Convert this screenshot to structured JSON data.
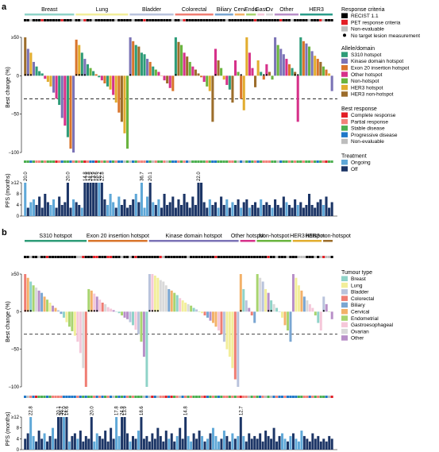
{
  "panels": {
    "a": {
      "label": "a",
      "groups": [
        {
          "name": "Breast",
          "color": "#8fd3c8"
        },
        {
          "name": "Lung",
          "color": "#f2ee9a"
        },
        {
          "name": "Bladder",
          "color": "#b9c3dc"
        },
        {
          "name": "Colorectal",
          "color": "#ef7d73"
        },
        {
          "name": "Biliary",
          "color": "#7aa6d2"
        },
        {
          "name": "Cerv",
          "color": "#f3b169"
        },
        {
          "name": "Endo",
          "color": "#a8d46f"
        },
        {
          "name": "Gast",
          "color": "#f5c7d9"
        },
        {
          "name": "Ov",
          "color": "#d9d9d9"
        },
        {
          "name": "Other",
          "color": "#b88fc8"
        },
        {
          "name": "HER3",
          "color": "#2a9c8a"
        }
      ],
      "bc_ylabel": "Best change (%)",
      "pfs_ylabel": "PFS (months)",
      "yticks_bc": [
        "≥50",
        "0",
        "−50",
        "−100"
      ],
      "yticks_pfs": [
        "≥12",
        "8",
        "4",
        "0"
      ],
      "pfs_labels": [
        "20.0",
        "20.0",
        "14.8",
        "17.8",
        "24.9",
        "13.9",
        "18.6",
        "16.2",
        "22.8",
        "36.7",
        "20.1",
        "22.0"
      ]
    },
    "b": {
      "label": "b",
      "groups": [
        {
          "name": "S310 hotspot",
          "color": "#2e9c78"
        },
        {
          "name": "Exon 20 insertion hotspot",
          "color": "#d9752c"
        },
        {
          "name": "Kinase domain hotspot",
          "color": "#7b73b6"
        },
        {
          "name": "Other hotspot",
          "color": "#d6318a"
        },
        {
          "name": "Non-hotspot",
          "color": "#6ab43f"
        },
        {
          "name": "HER3 hotspot",
          "color": "#e2ad2f"
        },
        {
          "name": "HER3 non-hotspot",
          "color": "#9c6d2b"
        }
      ],
      "bc_ylabel": "Best change (%)",
      "pfs_ylabel": "PFS (months)",
      "yticks_bc": [
        "≥50",
        "0",
        "−50",
        "−100"
      ],
      "yticks_pfs": [
        "≥12",
        "8",
        "4",
        "0"
      ],
      "pfs_labels": [
        "22.8",
        "20.1",
        "36.7",
        "22.0",
        "14.6",
        "20.0",
        "17.8",
        "24.9",
        "13.9",
        "18.6",
        "14.8",
        "12.7"
      ]
    }
  },
  "legend": {
    "response_criteria": {
      "title": "Response criteria",
      "items": [
        {
          "label": "RECIST 1.1",
          "color": "#000000"
        },
        {
          "label": "PET response criteria",
          "color": "#e21f26"
        },
        {
          "label": "Non-evaluable",
          "color": "#bdbdbd"
        }
      ],
      "no_target": "No target lesion measurement"
    },
    "allele_domain": {
      "title": "Allele/domain",
      "items": [
        {
          "label": "S310 hotspot",
          "color": "#2e9c78"
        },
        {
          "label": "Kinase domain hotspot",
          "color": "#7b73b6"
        },
        {
          "label": "Exon 20 insertion hotspot",
          "color": "#d9752c"
        },
        {
          "label": "Other hotspot",
          "color": "#d6318a"
        },
        {
          "label": "Non-hotspot",
          "color": "#6ab43f"
        },
        {
          "label": "HER3 hotspot",
          "color": "#e2ad2f"
        },
        {
          "label": "HER3 non-hotspot",
          "color": "#9c6d2b"
        }
      ]
    },
    "best_response": {
      "title": "Best response",
      "items": [
        {
          "label": "Complete response",
          "color": "#e21f26"
        },
        {
          "label": "Partial response",
          "color": "#f2827a"
        },
        {
          "label": "Stable disease",
          "color": "#4caf50"
        },
        {
          "label": "Progressive disease",
          "color": "#1f78c8"
        },
        {
          "label": "Non-evaluable",
          "color": "#bdbdbd"
        }
      ]
    },
    "treatment": {
      "title": "Treatment",
      "items": [
        {
          "label": "Ongoing",
          "color": "#5fa8d8"
        },
        {
          "label": "Off",
          "color": "#1c3566"
        }
      ]
    },
    "tumour_type": {
      "title": "Tumour type",
      "items": [
        {
          "label": "Breast",
          "color": "#8fd3c8"
        },
        {
          "label": "Lung",
          "color": "#f2ee9a"
        },
        {
          "label": "Bladder",
          "color": "#b9c3dc"
        },
        {
          "label": "Colorectal",
          "color": "#ef7d73"
        },
        {
          "label": "Biliary",
          "color": "#7aa6d2"
        },
        {
          "label": "Cervical",
          "color": "#f3b169"
        },
        {
          "label": "Endometrial",
          "color": "#a8d46f"
        },
        {
          "label": "Gastroesophageal",
          "color": "#f5c7d9"
        },
        {
          "label": "Ovarian",
          "color": "#d9d9d9"
        },
        {
          "label": "Other",
          "color": "#b88fc8"
        }
      ]
    }
  },
  "chart_data": [
    {
      "type": "bar",
      "title": "",
      "panel": "a",
      "xlabel": "",
      "ylabel": "Best change (%)",
      "ylim": [
        -100,
        50
      ],
      "reference_line": -30,
      "group_sizes": [
        18,
        19,
        16,
        14,
        7,
        4,
        4,
        3,
        3,
        9,
        12
      ],
      "bar_colors": [
        "#2e9c78",
        "#7b73b6",
        "#d9752c",
        "#d6318a",
        "#6ab43f",
        "#e2ad2f",
        "#9c6d2b"
      ],
      "values": [
        50,
        35,
        30,
        18,
        12,
        6,
        3,
        -4,
        -8,
        -14,
        -22,
        -30,
        -38,
        -55,
        -65,
        -80,
        -95,
        -100,
        47,
        40,
        30,
        22,
        15,
        10,
        6,
        2,
        -2,
        -6,
        -10,
        -14,
        -18,
        -25,
        -35,
        -48,
        -60,
        -75,
        -95,
        50,
        45,
        40,
        38,
        30,
        28,
        22,
        18,
        12,
        8,
        5,
        0,
        -6,
        -10,
        -16,
        -20,
        50,
        44,
        40,
        30,
        25,
        18,
        12,
        8,
        3,
        -2,
        -8,
        -14,
        -20,
        -60,
        35,
        20,
        10,
        -5,
        -12,
        -18,
        -35,
        20,
        5,
        -30,
        -45,
        50,
        30,
        10,
        -15,
        20,
        5,
        -5,
        15,
        5,
        -5,
        50,
        40,
        35,
        28,
        22,
        15,
        10,
        5,
        -60,
        50,
        45,
        42,
        38,
        32,
        26,
        22,
        18,
        12,
        8,
        3,
        -20
      ]
    },
    {
      "type": "bar",
      "title": "",
      "panel": "a",
      "xlabel": "",
      "ylabel": "PFS (months)",
      "ylim": [
        0,
        12
      ],
      "values": [
        12,
        3,
        5,
        6,
        4,
        7,
        3,
        8,
        5,
        4,
        6,
        3,
        7,
        4,
        5,
        12,
        3,
        6,
        5,
        4,
        3,
        12,
        12,
        12,
        12,
        12,
        12,
        12,
        6,
        4,
        8,
        5,
        3,
        7,
        4,
        6,
        3,
        4,
        6,
        8,
        5,
        12,
        3,
        7,
        12,
        5,
        4,
        6,
        3,
        8,
        4,
        5,
        7,
        3,
        6,
        4,
        8,
        5,
        3,
        7,
        4,
        12,
        12,
        5,
        3,
        6,
        4,
        5,
        3,
        7,
        4,
        6,
        3,
        5,
        4,
        6,
        3,
        5,
        6,
        3,
        4,
        5,
        3,
        6,
        4,
        5,
        4,
        3,
        6,
        4,
        3,
        7,
        5,
        4,
        3,
        6,
        4,
        5,
        3,
        4,
        8,
        4,
        3,
        5,
        6,
        4,
        7,
        3,
        5
      ]
    },
    {
      "type": "bar",
      "title": "",
      "panel": "b",
      "xlabel": "",
      "ylabel": "Best change (%)",
      "ylim": [
        -100,
        50
      ],
      "reference_line": -30,
      "group_sizes": [
        23,
        22,
        33,
        6,
        13,
        11,
        4
      ],
      "values": [
        50,
        45,
        40,
        35,
        32,
        28,
        25,
        20,
        16,
        12,
        8,
        5,
        2,
        -3,
        -8,
        -14,
        -20,
        -26,
        -32,
        -40,
        -55,
        -75,
        -100,
        30,
        28,
        24,
        20,
        16,
        12,
        10,
        6,
        4,
        2,
        0,
        -2,
        -5,
        -8,
        -10,
        -14,
        -18,
        -24,
        -30,
        -40,
        -60,
        -100,
        50,
        50,
        48,
        45,
        42,
        40,
        35,
        30,
        28,
        25,
        22,
        18,
        15,
        12,
        10,
        8,
        5,
        3,
        0,
        -2,
        -5,
        -8,
        -12,
        -15,
        -20,
        -25,
        -30,
        -40,
        -50,
        -60,
        -75,
        -90,
        -100,
        50,
        30,
        15,
        5,
        -5,
        -15,
        50,
        45,
        40,
        30,
        25,
        15,
        10,
        5,
        0,
        -8,
        -18,
        -25,
        -40,
        50,
        45,
        35,
        28,
        20,
        15,
        10,
        5,
        -5,
        -15,
        -25,
        20,
        10,
        0,
        -10
      ]
    },
    {
      "type": "bar",
      "title": "",
      "panel": "b",
      "xlabel": "",
      "ylabel": "PFS (months)",
      "ylim": [
        0,
        12
      ],
      "values": [
        4,
        6,
        12,
        5,
        3,
        7,
        4,
        6,
        3,
        5,
        8,
        4,
        12,
        12,
        12,
        12,
        3,
        5,
        6,
        4,
        7,
        3,
        5,
        4,
        12,
        3,
        6,
        5,
        4,
        7,
        3,
        8,
        4,
        12,
        5,
        12,
        12,
        6,
        3,
        5,
        4,
        7,
        12,
        4,
        5,
        3,
        6,
        4,
        8,
        5,
        3,
        7,
        4,
        6,
        3,
        5,
        8,
        4,
        12,
        5,
        3,
        6,
        4,
        7,
        5,
        3,
        4,
        6,
        8,
        5,
        3,
        4,
        7,
        5,
        3,
        6,
        4,
        5,
        12,
        5,
        3,
        6,
        4,
        5,
        4,
        6,
        3,
        7,
        5,
        4,
        8,
        3,
        5,
        6,
        4,
        3,
        5,
        6,
        4,
        3,
        7,
        5,
        4,
        3,
        6,
        4,
        5,
        3,
        4,
        3,
        5,
        4
      ]
    }
  ]
}
